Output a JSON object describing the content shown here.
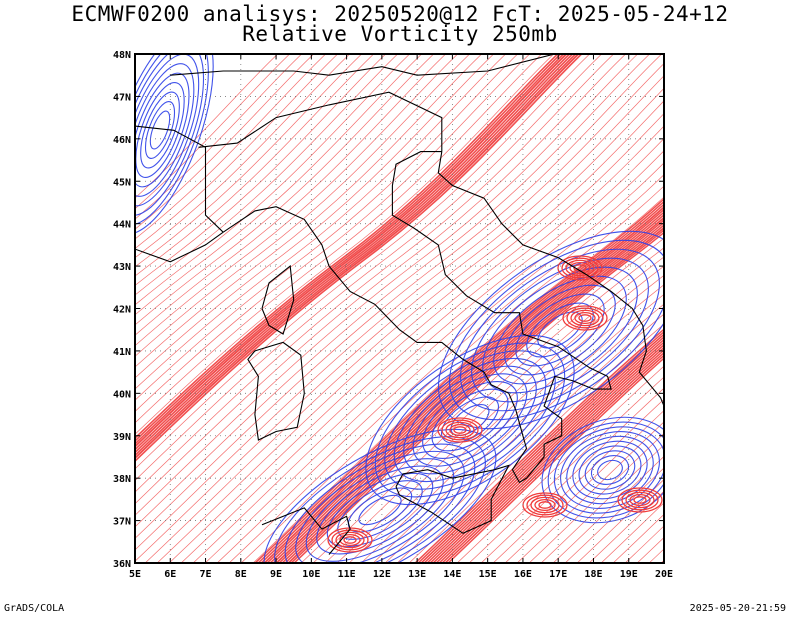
{
  "header": {
    "title_line1": "ECMWF0200 analisys: 20250520@12 FcT: 2025-05-24+12",
    "title_line2": "Relative Vorticity 250mb"
  },
  "map": {
    "lon_labels": [
      "5E",
      "6E",
      "7E",
      "8E",
      "9E",
      "10E",
      "11E",
      "12E",
      "13E",
      "14E",
      "15E",
      "16E",
      "17E",
      "18E",
      "19E",
      "20E"
    ],
    "lat_labels": [
      "36N",
      "37N",
      "38N",
      "39N",
      "40N",
      "41N",
      "42N",
      "43N",
      "44N",
      "45N",
      "46N",
      "47N",
      "48N"
    ],
    "lon_range": [
      5,
      20
    ],
    "lat_range": [
      36,
      48
    ],
    "colors": {
      "positive_vorticity": "#f03c3c",
      "negative_vorticity": "#2c40e8",
      "coastline": "#000000",
      "grid": "#777777"
    }
  },
  "footer": {
    "left": "GrADS/COLA",
    "right": "2025-05-20-21:59"
  }
}
